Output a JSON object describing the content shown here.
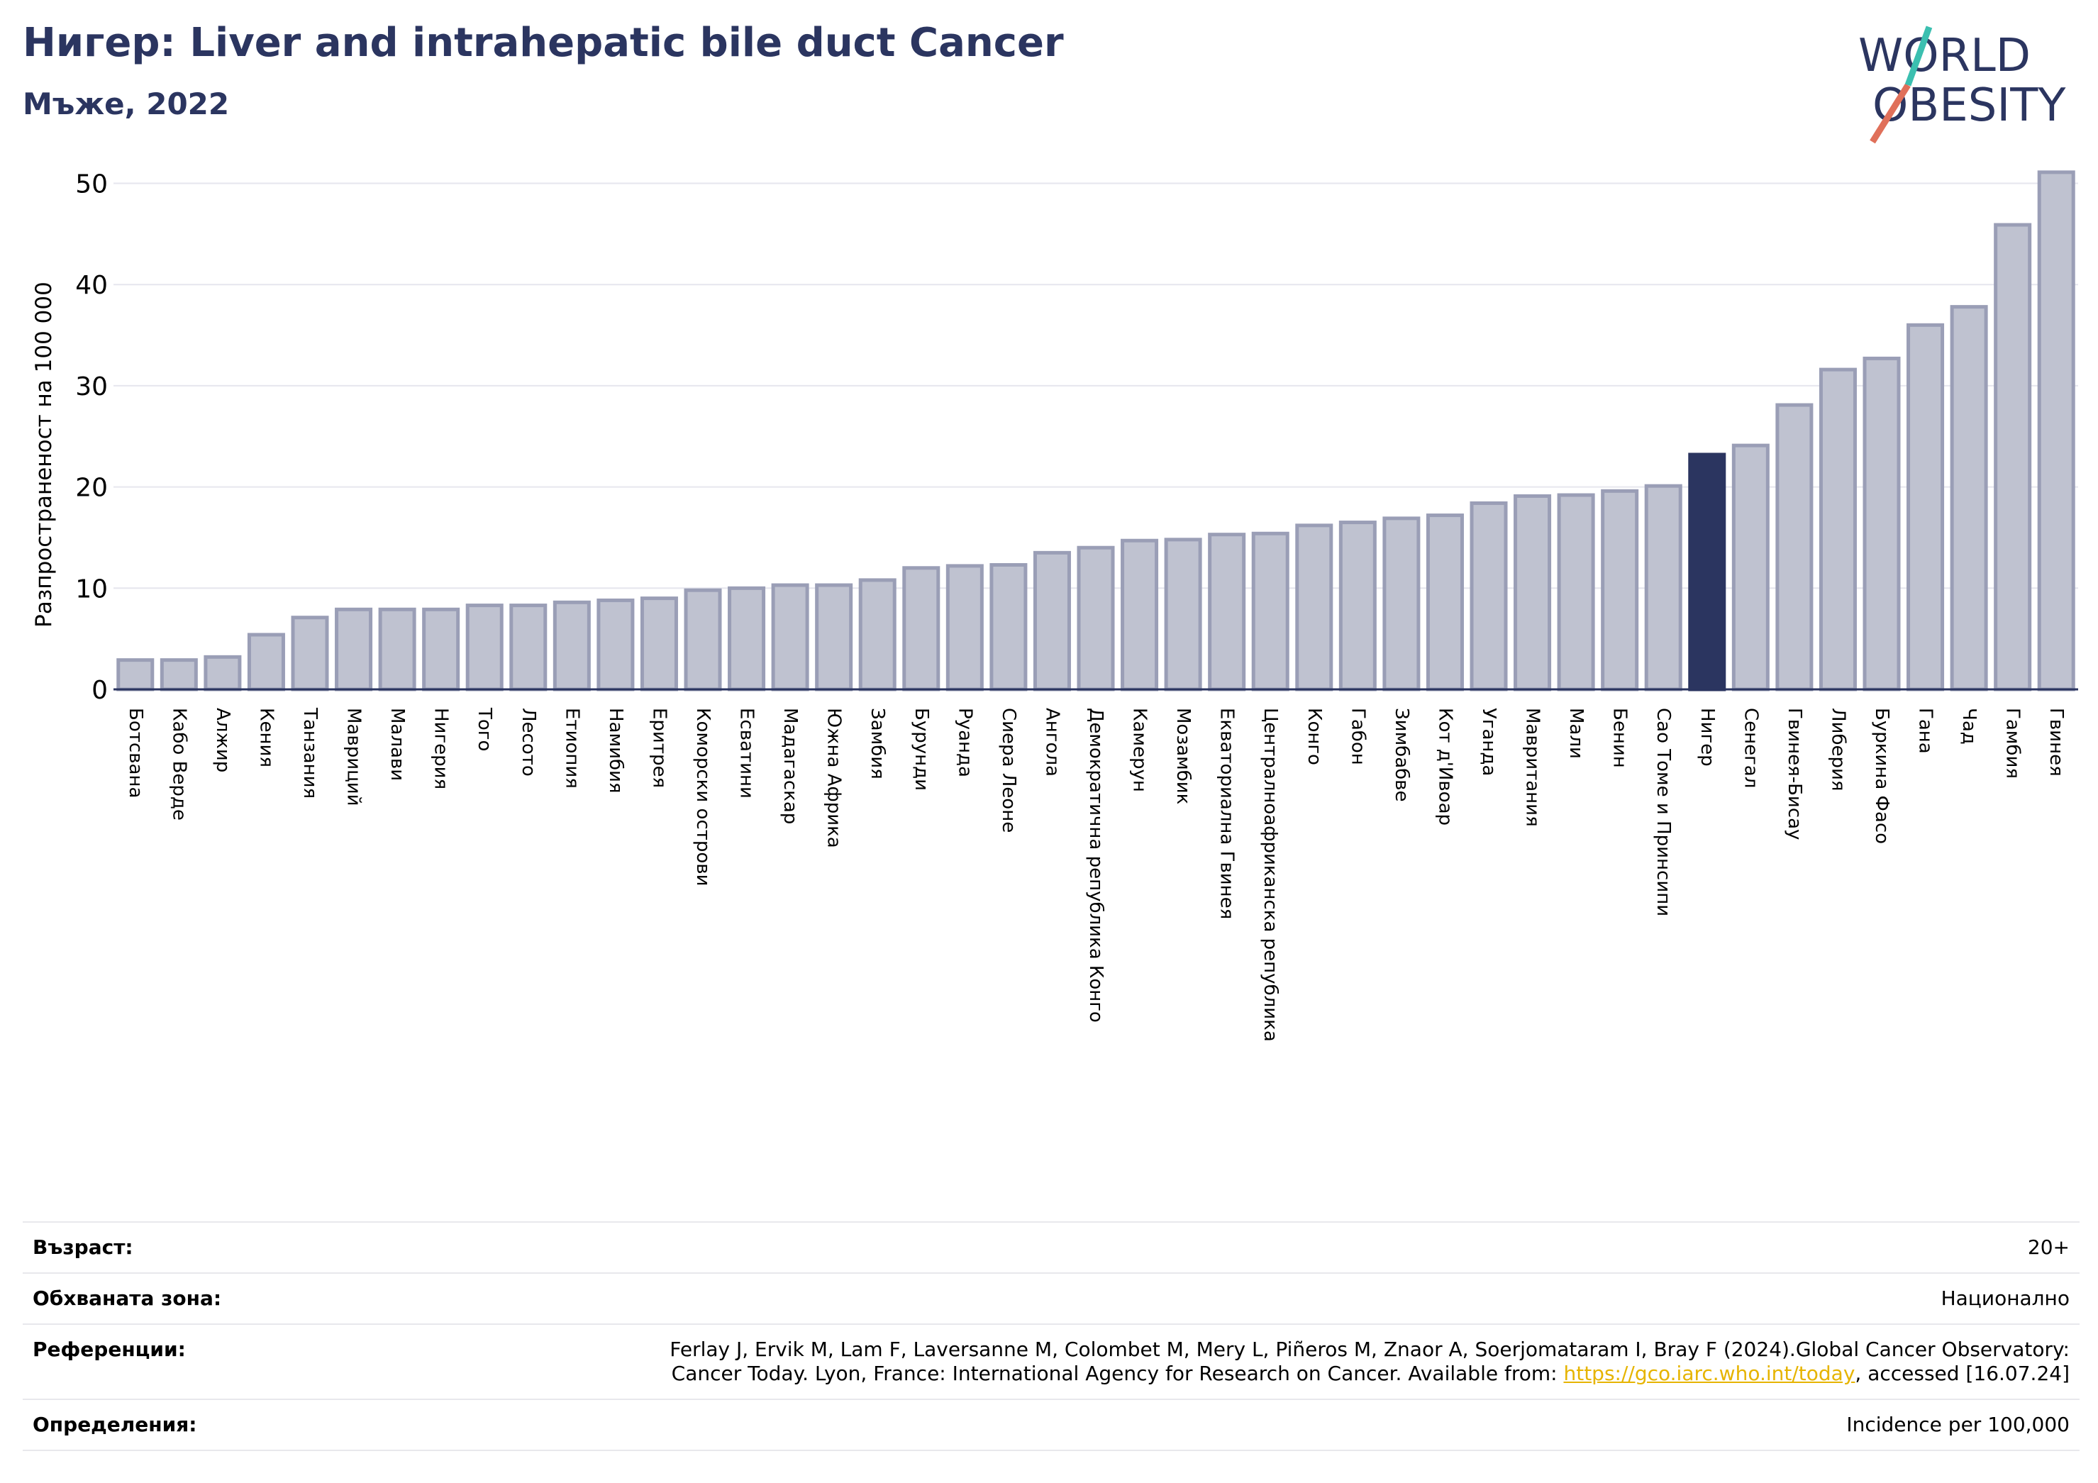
{
  "header": {
    "title": "Нигер: Liver and intrahepatic bile duct Cancer",
    "subtitle": "Мъже, 2022",
    "logo_line1": "WORLD",
    "logo_line2": "OBESITY"
  },
  "colors": {
    "bar": "#bfc2d0",
    "bar_edge": "#9a9eb6",
    "highlight": "#2b3560",
    "title": "#2b3560"
  },
  "chart_data": {
    "type": "bar",
    "title": "Нигер: Liver and intrahepatic bile duct Cancer",
    "subtitle": "Мъже, 2022",
    "ylabel": "Разпространеност  на 100 000",
    "xlabel": "",
    "ylim": [
      0,
      52
    ],
    "yticks": [
      0,
      10,
      20,
      30,
      40,
      50
    ],
    "grid": true,
    "highlight": "Нигер",
    "categories": [
      "Ботсвана",
      "Кабо Верде",
      "Алжир",
      "Кения",
      "Танзания",
      "Мавриций",
      "Малави",
      "Нигерия",
      "Того",
      "Лесото",
      "Етиопия",
      "Намибия",
      "Еритрея",
      "Коморски острови",
      "Есватини",
      "Мадагаскар",
      "Южна Африка",
      "Замбия",
      "Бурунди",
      "Руанда",
      "Сиера Леоне",
      "Ангола",
      "Демократична република Конго",
      "Камерун",
      "Мозамбик",
      "Екваториална Гвинея",
      "Централноафриканска република",
      "Конго",
      "Габон",
      "Зимбабве",
      "Кот д'Ивоар",
      "Уганда",
      "Мавритания",
      "Мали",
      "Бенин",
      "Сао Томе и Принсипи",
      "Нигер",
      "Сенегал",
      "Гвинея-Бисау",
      "Либерия",
      "Буркина Фасо",
      "Гана",
      "Чад",
      "Гамбия",
      "Гвинея"
    ],
    "values": [
      2.9,
      2.9,
      3.2,
      5.4,
      7.1,
      7.9,
      7.9,
      7.9,
      8.3,
      8.3,
      8.6,
      8.8,
      9.0,
      9.8,
      10.0,
      10.3,
      10.3,
      10.8,
      12.0,
      12.2,
      12.3,
      13.5,
      14.0,
      14.7,
      14.8,
      15.3,
      15.4,
      16.2,
      16.5,
      16.9,
      17.2,
      18.4,
      19.1,
      19.2,
      19.6,
      20.1,
      23.2,
      24.1,
      28.1,
      31.6,
      32.7,
      36.0,
      37.8,
      45.9,
      51.1
    ]
  },
  "meta": {
    "age_label": "Възраст:",
    "age_value": "20+",
    "area_label": "Обхваната зона:",
    "area_value": "Национално",
    "ref_label": "Референции:",
    "ref_line1": "Ferlay J, Ervik M, Lam F, Laversanne M, Colombet M, Mery L, Piñeros M, Znaor A, Soerjomataram I, Bray F (2024).Global Cancer Observatory:",
    "ref_line2_a": "Cancer Today. Lyon, France: International Agency for Research on Cancer. Available from: ",
    "ref_link": "https://gco.iarc.who.int/today",
    "ref_line2_b": ", accessed [16.07.24]",
    "def_label": "Определения:",
    "def_value": "Incidence per 100,000"
  }
}
